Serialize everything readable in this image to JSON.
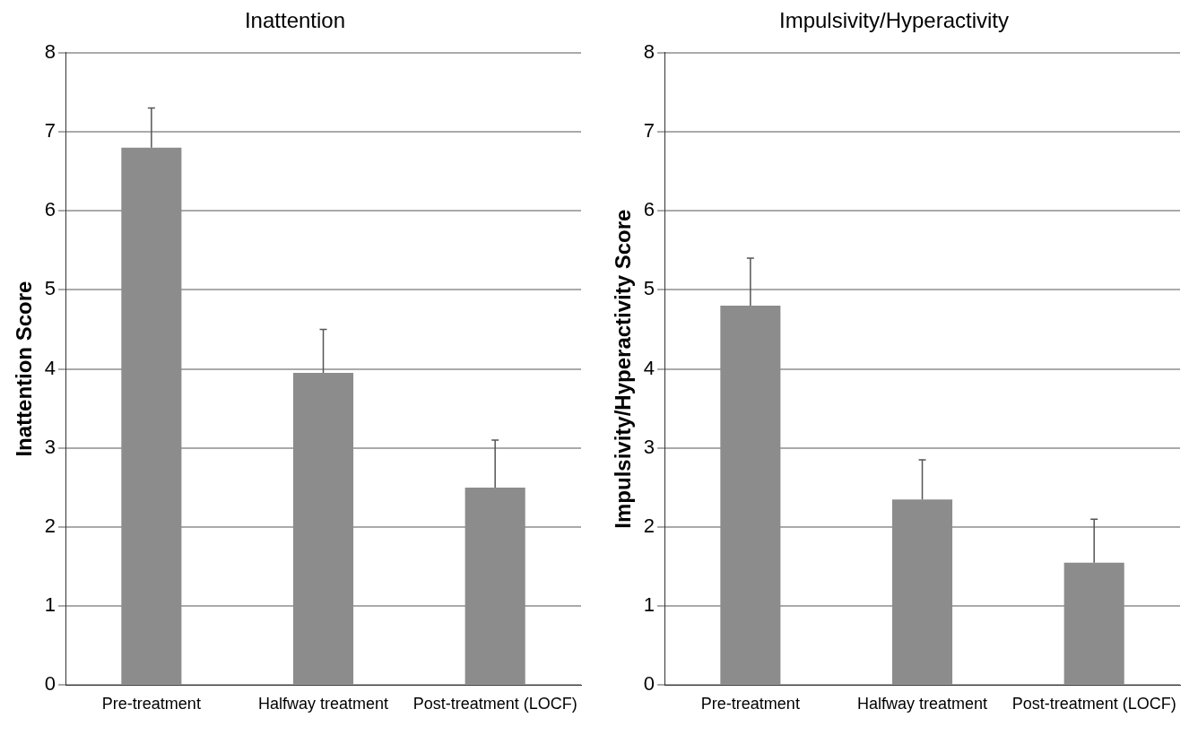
{
  "chart_data": [
    {
      "type": "bar",
      "title": "Inattention",
      "ylabel": "Inattention Score",
      "categories": [
        "Pre-treatment",
        "Halfway treatment",
        "Post-treatment (LOCF)"
      ],
      "values": [
        6.8,
        3.95,
        2.5
      ],
      "errors": [
        [
          6.8,
          7.3
        ],
        [
          3.95,
          4.5
        ],
        [
          2.5,
          3.1
        ]
      ],
      "color": "#8c8c8c",
      "ylim": [
        0,
        8
      ],
      "yticks": [
        0,
        1,
        2,
        3,
        4,
        5,
        6,
        7,
        8
      ],
      "grid": "y"
    },
    {
      "type": "bar",
      "title": "Impulsivity/Hyperactivity",
      "ylabel": "Impulsivity/Hyperactivity Score",
      "categories": [
        "Pre-treatment",
        "Halfway treatment",
        "Post-treatment (LOCF)"
      ],
      "values": [
        4.8,
        2.35,
        1.55
      ],
      "errors": [
        [
          4.8,
          5.4
        ],
        [
          2.35,
          2.85
        ],
        [
          1.55,
          2.1
        ]
      ],
      "color": "#8c8c8c",
      "ylim": [
        0,
        8
      ],
      "yticks": [
        0,
        1,
        2,
        3,
        4,
        5,
        6,
        7,
        8
      ],
      "grid": "y"
    }
  ]
}
